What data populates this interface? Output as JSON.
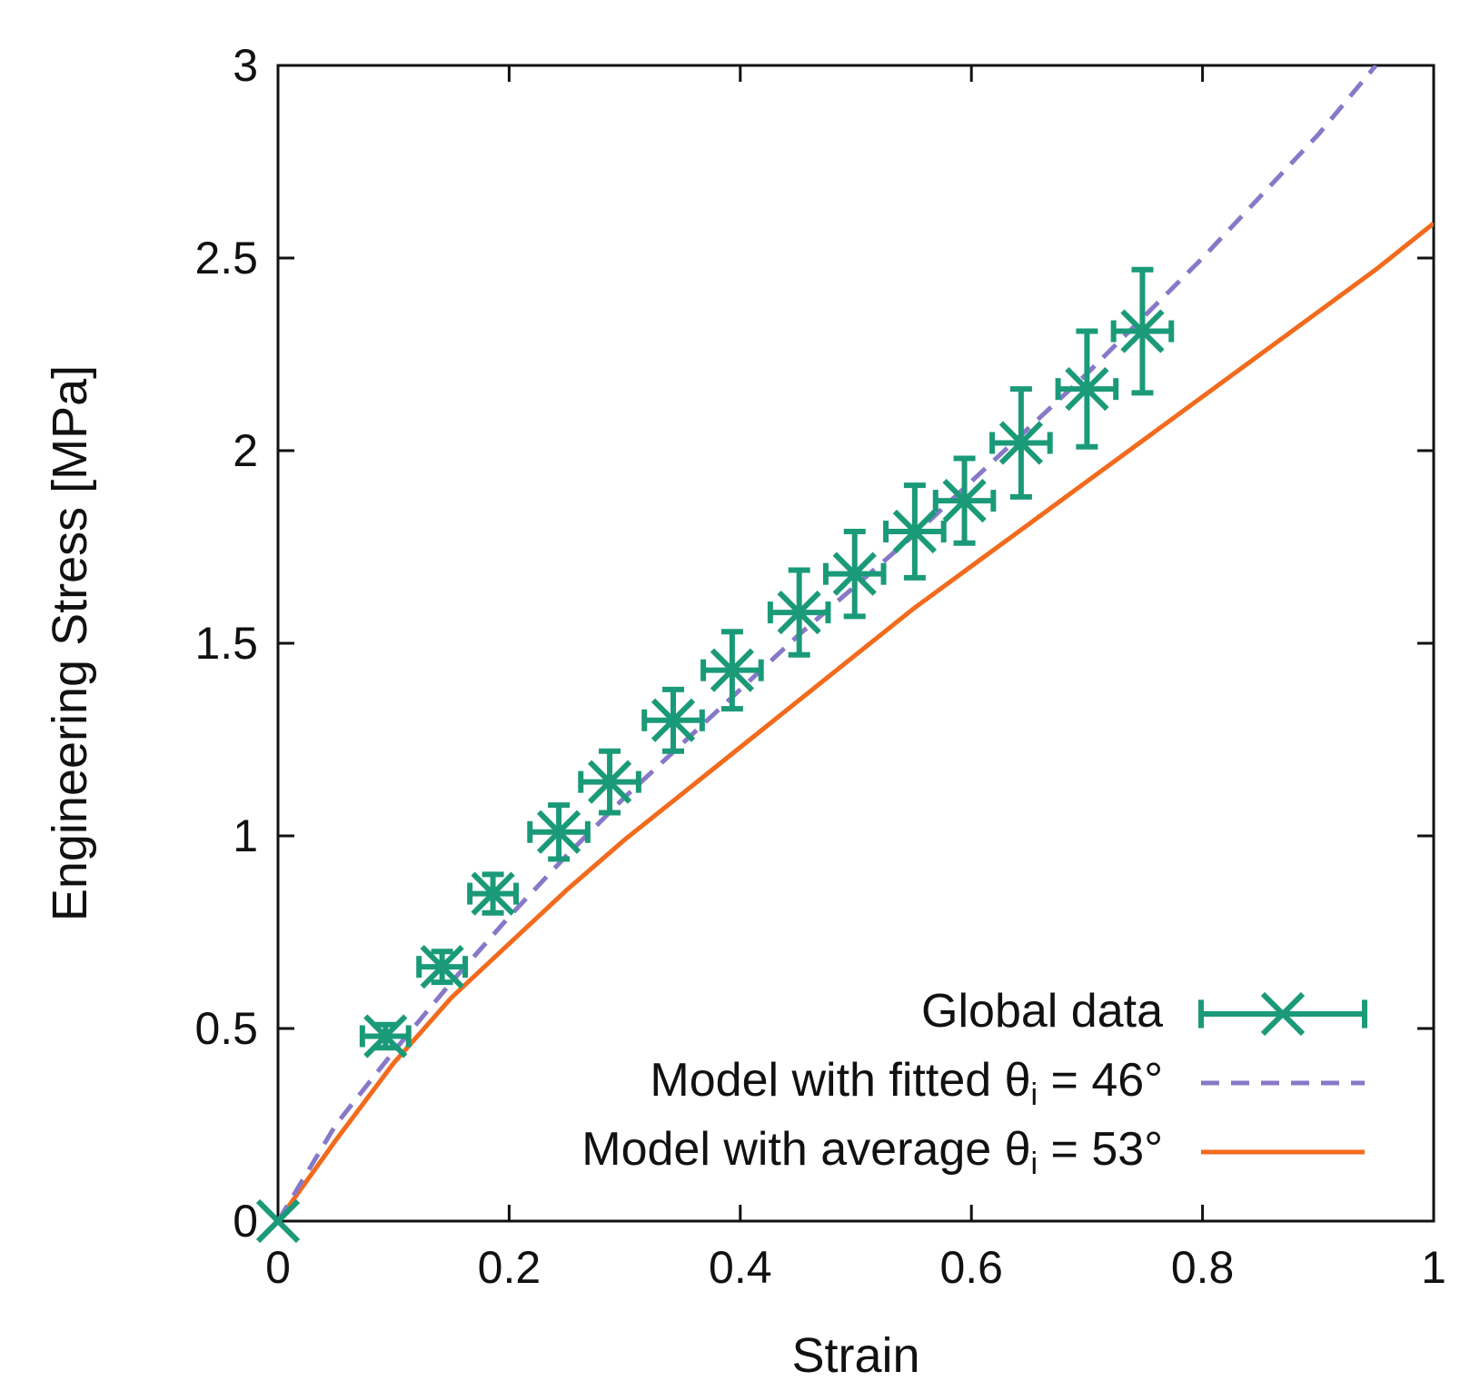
{
  "chart_data": {
    "type": "line",
    "title": "",
    "xlabel": "Strain",
    "ylabel": "Engineering Stress [MPa]",
    "xlim": [
      0,
      1
    ],
    "ylim": [
      0,
      3
    ],
    "xticks": [
      0,
      0.2,
      0.4,
      0.6,
      0.8,
      1
    ],
    "xtick_labels": [
      "0",
      "0.2",
      "0.4",
      "0.6",
      "0.8",
      "1"
    ],
    "yticks": [
      0,
      0.5,
      1,
      1.5,
      2,
      2.5,
      3
    ],
    "ytick_labels": [
      "0",
      "0.5",
      "1",
      "1.5",
      "2",
      "2.5",
      "3"
    ],
    "grid": false,
    "legend_position": "bottom-right",
    "series": [
      {
        "name": "Global data",
        "kind": "scatter-errorbars",
        "color": "#1a9a78",
        "x": [
          0,
          0.093,
          0.142,
          0.186,
          0.243,
          0.287,
          0.342,
          0.393,
          0.451,
          0.499,
          0.551,
          0.594,
          0.643,
          0.7,
          0.748
        ],
        "y": [
          0,
          0.48,
          0.66,
          0.85,
          1.01,
          1.14,
          1.3,
          1.43,
          1.58,
          1.68,
          1.79,
          1.87,
          2.02,
          2.16,
          2.31
        ],
        "x_err": [
          0,
          0.02,
          0.02,
          0.02,
          0.025,
          0.025,
          0.025,
          0.025,
          0.025,
          0.025,
          0.025,
          0.025,
          0.025,
          0.025,
          0.025
        ],
        "y_err": [
          0,
          0.03,
          0.04,
          0.05,
          0.07,
          0.08,
          0.08,
          0.1,
          0.11,
          0.11,
          0.12,
          0.11,
          0.14,
          0.15,
          0.16
        ]
      },
      {
        "name": "Model with fitted θ",
        "legend_value": " = 46°",
        "kind": "line",
        "style": "dashed",
        "color": "#8878c8",
        "x": [
          0,
          0.05,
          0.1,
          0.15,
          0.2,
          0.25,
          0.3,
          0.35,
          0.4,
          0.45,
          0.5,
          0.55,
          0.6,
          0.65,
          0.7,
          0.75,
          0.8,
          0.85,
          0.9,
          0.95
        ],
        "y": [
          0,
          0.25,
          0.44,
          0.62,
          0.79,
          0.95,
          1.1,
          1.24,
          1.38,
          1.52,
          1.65,
          1.78,
          1.92,
          2.06,
          2.2,
          2.35,
          2.5,
          2.66,
          2.82,
          3.0
        ]
      },
      {
        "name": "Model with average θ",
        "legend_value": " = 53°",
        "kind": "line",
        "style": "solid",
        "color": "#f26b1d",
        "x": [
          0,
          0.05,
          0.1,
          0.15,
          0.2,
          0.25,
          0.3,
          0.35,
          0.4,
          0.45,
          0.5,
          0.55,
          0.6,
          0.65,
          0.7,
          0.75,
          0.8,
          0.85,
          0.9,
          0.95,
          1.0
        ],
        "y": [
          0,
          0.21,
          0.41,
          0.58,
          0.72,
          0.86,
          0.99,
          1.11,
          1.23,
          1.35,
          1.47,
          1.59,
          1.7,
          1.81,
          1.92,
          2.03,
          2.14,
          2.25,
          2.36,
          2.47,
          2.59
        ]
      }
    ]
  }
}
